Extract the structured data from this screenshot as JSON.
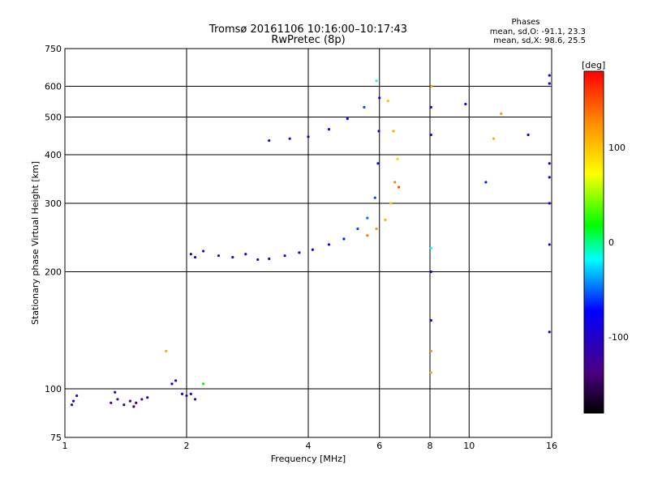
{
  "chart_data": {
    "type": "scatter",
    "title": "Tromsø 20161106 10:16:00–10:17:43",
    "subtitle": "RwPretec (8p)",
    "xlabel": "Frequency [MHz]",
    "ylabel": "Stationary phase Virtual Height [km]",
    "x_scale": "log",
    "y_scale": "log",
    "xlim": [
      1,
      16
    ],
    "ylim": [
      75,
      750
    ],
    "x_ticks": [
      1,
      2,
      4,
      6,
      8,
      10,
      16
    ],
    "y_ticks": [
      75,
      100,
      200,
      300,
      400,
      500,
      600,
      750
    ],
    "grid": true,
    "info_box": {
      "heading": "Phases",
      "line1": "mean, sd,O: -91.1, 23.3",
      "line2": "mean, sd,X:  98.6, 25.5"
    },
    "colorbar": {
      "label": "[deg]",
      "range": [
        -180,
        180
      ],
      "ticks": [
        -100,
        0,
        100
      ],
      "colors": [
        "#000000",
        "#4b0082",
        "#0000ff",
        "#00ffff",
        "#00ff00",
        "#ffff00",
        "#ff8c00",
        "#ff0000"
      ]
    },
    "series": [
      {
        "x": 1.05,
        "y": 93,
        "phase": -120
      },
      {
        "x": 1.07,
        "y": 96,
        "phase": -110
      },
      {
        "x": 1.04,
        "y": 91,
        "phase": -130
      },
      {
        "x": 1.3,
        "y": 92,
        "phase": -140
      },
      {
        "x": 1.35,
        "y": 94,
        "phase": -130
      },
      {
        "x": 1.4,
        "y": 91,
        "phase": -150
      },
      {
        "x": 1.45,
        "y": 93,
        "phase": -140
      },
      {
        "x": 1.5,
        "y": 92,
        "phase": -145
      },
      {
        "x": 1.55,
        "y": 94,
        "phase": -135
      },
      {
        "x": 1.6,
        "y": 95,
        "phase": -130
      },
      {
        "x": 1.33,
        "y": 98,
        "phase": -120
      },
      {
        "x": 1.48,
        "y": 90,
        "phase": -150
      },
      {
        "x": 1.84,
        "y": 103,
        "phase": -110
      },
      {
        "x": 1.88,
        "y": 105,
        "phase": -120
      },
      {
        "x": 1.78,
        "y": 125,
        "phase": 110
      },
      {
        "x": 1.95,
        "y": 97,
        "phase": -120
      },
      {
        "x": 2.0,
        "y": 96,
        "phase": -110
      },
      {
        "x": 2.05,
        "y": 97,
        "phase": -100
      },
      {
        "x": 2.1,
        "y": 94,
        "phase": -115
      },
      {
        "x": 2.2,
        "y": 103,
        "phase": 20
      },
      {
        "x": 2.05,
        "y": 222,
        "phase": -120
      },
      {
        "x": 2.1,
        "y": 218,
        "phase": -110
      },
      {
        "x": 2.2,
        "y": 226,
        "phase": -100
      },
      {
        "x": 2.4,
        "y": 220,
        "phase": -130
      },
      {
        "x": 2.6,
        "y": 218,
        "phase": -120
      },
      {
        "x": 2.8,
        "y": 222,
        "phase": -110
      },
      {
        "x": 3.0,
        "y": 215,
        "phase": -130
      },
      {
        "x": 3.2,
        "y": 216,
        "phase": -120
      },
      {
        "x": 3.5,
        "y": 220,
        "phase": -100
      },
      {
        "x": 3.8,
        "y": 224,
        "phase": -110
      },
      {
        "x": 4.1,
        "y": 228,
        "phase": -90
      },
      {
        "x": 4.5,
        "y": 235,
        "phase": -80
      },
      {
        "x": 4.9,
        "y": 243,
        "phase": -70
      },
      {
        "x": 5.3,
        "y": 258,
        "phase": -60
      },
      {
        "x": 5.6,
        "y": 275,
        "phase": -50
      },
      {
        "x": 5.85,
        "y": 310,
        "phase": -60
      },
      {
        "x": 5.95,
        "y": 380,
        "phase": -70
      },
      {
        "x": 5.98,
        "y": 460,
        "phase": -80
      },
      {
        "x": 6.0,
        "y": 560,
        "phase": -90
      },
      {
        "x": 5.9,
        "y": 620,
        "phase": -20
      },
      {
        "x": 3.2,
        "y": 435,
        "phase": -120
      },
      {
        "x": 3.6,
        "y": 440,
        "phase": -110
      },
      {
        "x": 4.0,
        "y": 445,
        "phase": -100
      },
      {
        "x": 4.5,
        "y": 465,
        "phase": -90
      },
      {
        "x": 5.0,
        "y": 495,
        "phase": -80
      },
      {
        "x": 5.5,
        "y": 530,
        "phase": -60
      },
      {
        "x": 5.6,
        "y": 248,
        "phase": 130
      },
      {
        "x": 5.9,
        "y": 258,
        "phase": 120
      },
      {
        "x": 6.2,
        "y": 272,
        "phase": 110
      },
      {
        "x": 6.4,
        "y": 300,
        "phase": 100
      },
      {
        "x": 6.55,
        "y": 340,
        "phase": 130
      },
      {
        "x": 6.65,
        "y": 390,
        "phase": 90
      },
      {
        "x": 6.5,
        "y": 460,
        "phase": 110
      },
      {
        "x": 6.3,
        "y": 550,
        "phase": 100
      },
      {
        "x": 6.7,
        "y": 330,
        "phase": 150
      },
      {
        "x": 8.05,
        "y": 530,
        "phase": -90
      },
      {
        "x": 8.05,
        "y": 450,
        "phase": -100
      },
      {
        "x": 8.07,
        "y": 600,
        "phase": 110
      },
      {
        "x": 8.05,
        "y": 230,
        "phase": -20
      },
      {
        "x": 8.05,
        "y": 200,
        "phase": -100
      },
      {
        "x": 8.05,
        "y": 150,
        "phase": -100
      },
      {
        "x": 8.05,
        "y": 125,
        "phase": 120
      },
      {
        "x": 8.05,
        "y": 110,
        "phase": 110
      },
      {
        "x": 9.8,
        "y": 540,
        "phase": -80
      },
      {
        "x": 11.0,
        "y": 340,
        "phase": -70
      },
      {
        "x": 11.5,
        "y": 440,
        "phase": 110
      },
      {
        "x": 12.0,
        "y": 510,
        "phase": 120
      },
      {
        "x": 14.0,
        "y": 450,
        "phase": -100
      },
      {
        "x": 15.8,
        "y": 640,
        "phase": -100
      },
      {
        "x": 15.8,
        "y": 610,
        "phase": -90
      },
      {
        "x": 15.8,
        "y": 380,
        "phase": -100
      },
      {
        "x": 15.8,
        "y": 350,
        "phase": -110
      },
      {
        "x": 15.8,
        "y": 300,
        "phase": -80
      },
      {
        "x": 15.8,
        "y": 235,
        "phase": -100
      },
      {
        "x": 15.8,
        "y": 140,
        "phase": -120
      }
    ]
  }
}
